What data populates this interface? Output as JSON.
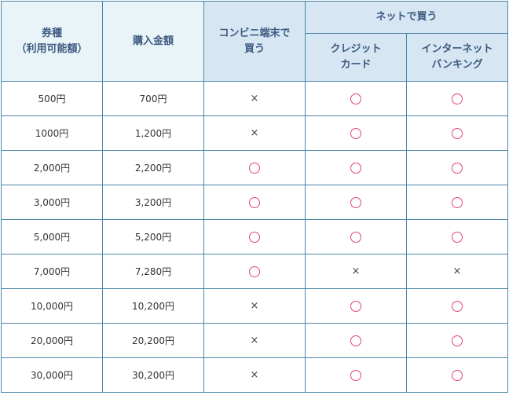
{
  "headers": {
    "type_line1": "券種",
    "type_line2": "（利用可能額）",
    "price": "購入金額",
    "store_line1": "コンビニ端末で",
    "store_line2": "買う",
    "net": "ネットで買う",
    "credit_line1": "クレジット",
    "credit_line2": "カード",
    "banking_line1": "インターネット",
    "banking_line2": "バンキング"
  },
  "legend_marks": {
    "available": "circle",
    "unavailable": "×"
  },
  "rows": [
    {
      "value": "500円",
      "price": "700円",
      "store": "×",
      "credit": "○",
      "banking": "○"
    },
    {
      "value": "1000円",
      "price": "1,200円",
      "store": "×",
      "credit": "○",
      "banking": "○"
    },
    {
      "value": "2,000円",
      "price": "2,200円",
      "store": "○",
      "credit": "○",
      "banking": "○"
    },
    {
      "value": "3,000円",
      "price": "3,200円",
      "store": "○",
      "credit": "○",
      "banking": "○"
    },
    {
      "value": "5,000円",
      "price": "5,200円",
      "store": "○",
      "credit": "○",
      "banking": "○"
    },
    {
      "value": "7,000円",
      "price": "7,280円",
      "store": "○",
      "credit": "×",
      "banking": "×"
    },
    {
      "value": "10,000円",
      "price": "10,200円",
      "store": "×",
      "credit": "○",
      "banking": "○"
    },
    {
      "value": "20,000円",
      "price": "20,200円",
      "store": "×",
      "credit": "○",
      "banking": "○"
    },
    {
      "value": "30,000円",
      "price": "30,200円",
      "store": "×",
      "credit": "○",
      "banking": "○"
    }
  ],
  "colors": {
    "border": "#4a86a8",
    "header_light": "#e8f4f8",
    "header_mid": "#d6e6f2",
    "header_text": "#3d5a80",
    "circle": "#e0457b"
  }
}
